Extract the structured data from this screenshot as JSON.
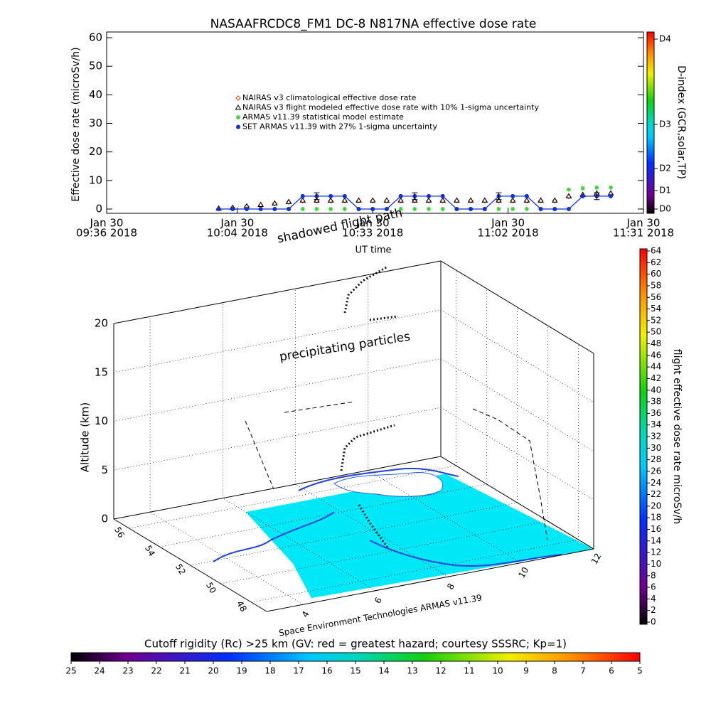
{
  "chart_data": [
    {
      "type": "line",
      "title": "NASAAFRCDC8_FM1 DC-8   N817NA effective dose rate",
      "ylabel": "Effective dose rate (microSv/h)",
      "xlabel": "UT time",
      "x": [
        "2018-01-30T10:00",
        "2018-01-30T10:03",
        "2018-01-30T10:06",
        "2018-01-30T10:09",
        "2018-01-30T10:12",
        "2018-01-30T10:15",
        "2018-01-30T10:18",
        "2018-01-30T10:21",
        "2018-01-30T10:24",
        "2018-01-30T10:27",
        "2018-01-30T10:30",
        "2018-01-30T10:33",
        "2018-01-30T10:36",
        "2018-01-30T10:39",
        "2018-01-30T10:42",
        "2018-01-30T10:45",
        "2018-01-30T10:48",
        "2018-01-30T10:51",
        "2018-01-30T10:54",
        "2018-01-30T10:57",
        "2018-01-30T11:00",
        "2018-01-30T11:03",
        "2018-01-30T11:06",
        "2018-01-30T11:09",
        "2018-01-30T11:12",
        "2018-01-30T11:15",
        "2018-01-30T11:18",
        "2018-01-30T11:21",
        "2018-01-30T11:24"
      ],
      "xlim": [
        "2018-01-30T09:36",
        "2018-01-30T11:31"
      ],
      "xticks": [
        {
          "value": "2018-01-30T09:36",
          "label": [
            "Jan 30",
            "09:36 2018"
          ]
        },
        {
          "value": "2018-01-30T10:04",
          "label": [
            "Jan 30",
            "10:04 2018"
          ]
        },
        {
          "value": "2018-01-30T10:33",
          "label": [
            "Jan 30",
            "10:33 2018"
          ]
        },
        {
          "value": "2018-01-30T11:02",
          "label": [
            "Jan 30",
            "11:02 2018"
          ]
        },
        {
          "value": "2018-01-30T11:31",
          "label": [
            "Jan 30",
            "11:31 2018"
          ]
        }
      ],
      "ylim": [
        -1.5,
        62
      ],
      "yticks": [
        0,
        10,
        20,
        30,
        40,
        50,
        60
      ],
      "series": [
        {
          "name": "NAIRAS v3 climatological effective dose rate",
          "marker": "diamond",
          "color": "#e04020",
          "values": [
            0.1,
            0.4,
            0.9,
            1.4,
            1.9,
            2.4,
            2.9,
            2.9,
            2.9,
            2.9,
            2.9,
            2.9,
            2.9,
            2.9,
            2.9,
            2.9,
            2.9,
            2.9,
            2.9,
            2.9,
            2.9,
            2.9,
            2.9,
            2.9,
            2.9,
            4.3,
            4.8,
            5.3,
            5.3
          ]
        },
        {
          "name": "NAIRAS v3 flight modeled effective dose rate with 10% 1-sigma uncertainty",
          "marker": "triangle",
          "color": "#000000",
          "values": [
            0.2,
            0.5,
            1.0,
            1.5,
            2.0,
            2.5,
            3.0,
            3.0,
            3.0,
            3.0,
            3.0,
            3.0,
            3.0,
            3.0,
            3.0,
            3.0,
            3.0,
            3.0,
            3.0,
            3.0,
            3.0,
            3.0,
            3.0,
            3.0,
            3.0,
            4.5,
            5.0,
            5.5,
            5.5
          ]
        },
        {
          "name": "ARMAS v11.39 statistical model estimate",
          "marker": "asterisk",
          "color": "#40d040",
          "values": [
            null,
            null,
            null,
            null,
            null,
            0,
            0,
            0,
            0,
            0,
            0,
            0,
            0,
            0,
            0,
            0,
            0,
            0,
            0,
            0,
            0,
            0,
            0,
            0,
            0,
            6.8,
            7.3,
            7.5,
            7.5
          ]
        },
        {
          "name": "SET ARMAS v11.39 with 27% 1-sigma uncertainty",
          "marker": "circle",
          "color": "#1030d0",
          "line": true,
          "values": [
            0,
            0,
            0,
            0,
            0,
            0,
            4.5,
            4.5,
            4.5,
            4.5,
            0,
            0,
            0,
            4.5,
            4.5,
            4.5,
            4.5,
            0,
            0,
            0,
            4.5,
            4.5,
            4.5,
            0,
            0,
            0,
            4.5,
            4.5,
            4.5
          ],
          "errors": [
            null,
            null,
            null,
            null,
            null,
            null,
            null,
            1.2,
            null,
            null,
            null,
            null,
            null,
            null,
            1.2,
            null,
            null,
            null,
            null,
            null,
            1.2,
            null,
            null,
            null,
            null,
            null,
            null,
            1.2,
            null
          ]
        }
      ],
      "colorbar": {
        "label": "D-index (GCR,solar,TP)",
        "ticks": [
          "D0",
          "D1",
          "D2",
          "D3",
          "D4"
        ]
      }
    },
    {
      "type": "scatter3d",
      "zlabel": "Altitude (km)",
      "xlim": [
        3,
        12
      ],
      "ylim": [
        47,
        57
      ],
      "zlim": [
        0,
        20
      ],
      "xticks": [
        4,
        6,
        8,
        10,
        12
      ],
      "yticks": [
        48,
        50,
        52,
        54,
        56
      ],
      "zticks": [
        0,
        5,
        10,
        15,
        20
      ],
      "annotations": [
        "shadowed flight path",
        "precipitating particles"
      ],
      "credit": "Space Environment Technologies ARMAS v11.39"
    },
    {
      "type": "colorbar",
      "orientation": "vertical",
      "label": "flight effective dose rate microSv/h",
      "ylim": [
        0,
        64
      ],
      "yticks": [
        0,
        2,
        4,
        6,
        8,
        10,
        12,
        14,
        16,
        18,
        20,
        22,
        24,
        26,
        28,
        30,
        32,
        34,
        36,
        38,
        40,
        42,
        44,
        46,
        48,
        50,
        52,
        54,
        56,
        58,
        60,
        62,
        64
      ]
    },
    {
      "type": "colorbar",
      "orientation": "horizontal",
      "label": "Cutoff rigidity (Rc) >25 km (GV: red = greatest hazard; courtesy SSSRC; Kp=1)",
      "xlim": [
        25,
        5
      ],
      "xticks": [
        25,
        24,
        23,
        22,
        21,
        20,
        19,
        18,
        17,
        16,
        15,
        14,
        13,
        12,
        11,
        10,
        9,
        8,
        7,
        6,
        5
      ]
    }
  ]
}
